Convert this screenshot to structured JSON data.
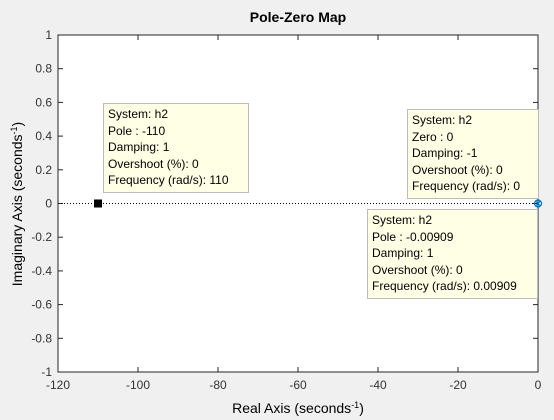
{
  "chart_data": {
    "type": "scatter",
    "title": "Pole-Zero Map",
    "xlabel": "Real Axis (seconds",
    "ylabel": "Imaginary Axis (seconds",
    "label_exponent": "-1",
    "label_close": ")",
    "xlim": [
      -120,
      0
    ],
    "ylim": [
      -1,
      1
    ],
    "xticks": [
      "-120",
      "-100",
      "-80",
      "-60",
      "-40",
      "-20",
      "0"
    ],
    "yticks": [
      "-1",
      "-0.8",
      "-0.6",
      "-0.4",
      "-0.2",
      "0",
      "0.2",
      "0.4",
      "0.6",
      "0.8",
      "1"
    ],
    "grid": false,
    "poles": [
      {
        "x": -110,
        "y": 0
      },
      {
        "x": -0.00909,
        "y": 0
      }
    ],
    "zeros": [
      {
        "x": 0,
        "y": 0
      }
    ],
    "colors": {
      "marker": "#0072bd",
      "selected_marker": "#000000",
      "zero_line": "#000000",
      "tooltip_bg": "#ffffe6"
    }
  },
  "tooltips": {
    "pole_110": {
      "system": "System: h2",
      "value": "Pole : -110",
      "damping": "Damping: 1",
      "overshoot": "Overshoot (%): 0",
      "frequency": "Frequency (rad/s): 110"
    },
    "zero_0": {
      "system": "System: h2",
      "value": "Zero : 0",
      "damping": "Damping: -1",
      "overshoot": "Overshoot (%): 0",
      "frequency": "Frequency (rad/s): 0"
    },
    "pole_small": {
      "system": "System: h2",
      "value": "Pole : -0.00909",
      "damping": "Damping: 1",
      "overshoot": "Overshoot (%): 0",
      "frequency": "Frequency (rad/s): 0.00909"
    }
  }
}
